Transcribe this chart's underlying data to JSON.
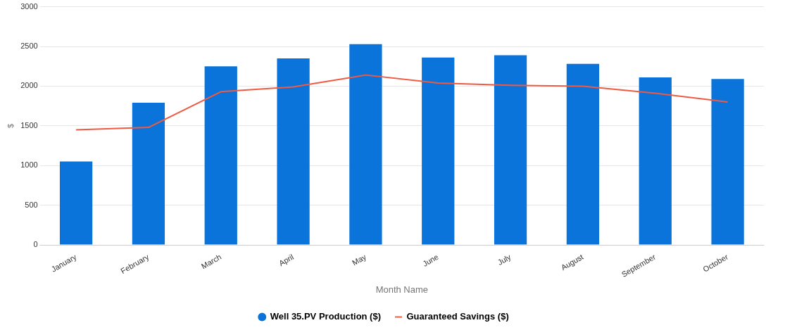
{
  "chart_data": {
    "type": "bar",
    "xlabel": "Month Name",
    "ylabel": "$",
    "categories": [
      "January",
      "February",
      "March",
      "April",
      "May",
      "June",
      "July",
      "August",
      "September",
      "October"
    ],
    "series": [
      {
        "name": "Well 35.PV Production ($)",
        "color": "#0a74da",
        "values": [
          1050,
          1790,
          2250,
          2350,
          2530,
          2360,
          2390,
          2280,
          2110,
          2090
        ]
      },
      {
        "name": "Guaranteed Savings ($)",
        "type": "line",
        "color": "#f15a40",
        "values": [
          1450,
          1480,
          1930,
          1990,
          2140,
          2040,
          2010,
          2000,
          1910,
          1800
        ]
      }
    ],
    "ylim": [
      0,
      3000
    ],
    "yticks": [
      0,
      500,
      1000,
      1500,
      2000,
      2500,
      3000
    ],
    "grid": "y",
    "legend": "bottom",
    "marker": "none"
  }
}
